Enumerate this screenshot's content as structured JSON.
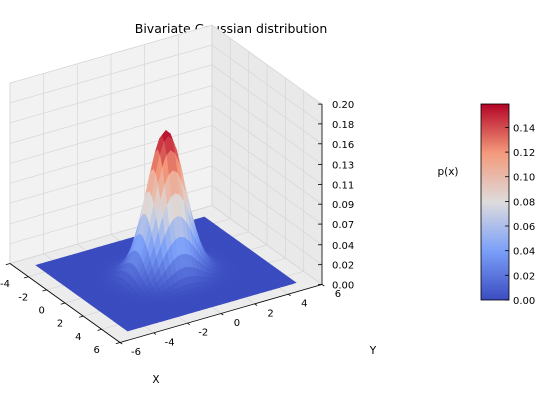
{
  "chart_data": {
    "type": "surface3d",
    "title": "Bivariate Gaussian distribution",
    "xlabel": "X",
    "ylabel": "Y",
    "zlabel": "p(x)",
    "xlim": [
      -6,
      6
    ],
    "ylim": [
      -6,
      6
    ],
    "zlim": [
      0,
      0.2
    ],
    "surface_extent": [
      -5,
      5
    ],
    "grid": true,
    "gaussian": {
      "mean": [
        0,
        0
      ],
      "sigma": [
        1,
        1
      ],
      "correlation": 0,
      "peak": 0.159
    },
    "x_ticks": [
      "-6",
      "-4",
      "-2",
      "0",
      "2",
      "4",
      "6"
    ],
    "x_tick_values": [
      -6,
      -4,
      -2,
      0,
      2,
      4,
      6
    ],
    "y_ticks": [
      "-6",
      "-4",
      "-2",
      "0",
      "2",
      "4",
      "6"
    ],
    "y_tick_values": [
      -6,
      -4,
      -2,
      0,
      2,
      4,
      6
    ],
    "z_ticks": [
      "0.00",
      "0.02",
      "0.04",
      "0.07",
      "0.09",
      "0.11",
      "0.13",
      "0.16",
      "0.18",
      "0.20"
    ],
    "z_tick_values": [
      0.0,
      0.022,
      0.044,
      0.067,
      0.089,
      0.111,
      0.133,
      0.156,
      0.178,
      0.2
    ],
    "colormap": "coolwarm",
    "colorbar": {
      "range": [
        0,
        0.159
      ],
      "ticks": [
        "0.00",
        "0.02",
        "0.04",
        "0.06",
        "0.08",
        "0.10",
        "0.12",
        "0.14"
      ],
      "tick_values": [
        0.0,
        0.02,
        0.04,
        0.06,
        0.08,
        0.1,
        0.12,
        0.14
      ]
    }
  }
}
